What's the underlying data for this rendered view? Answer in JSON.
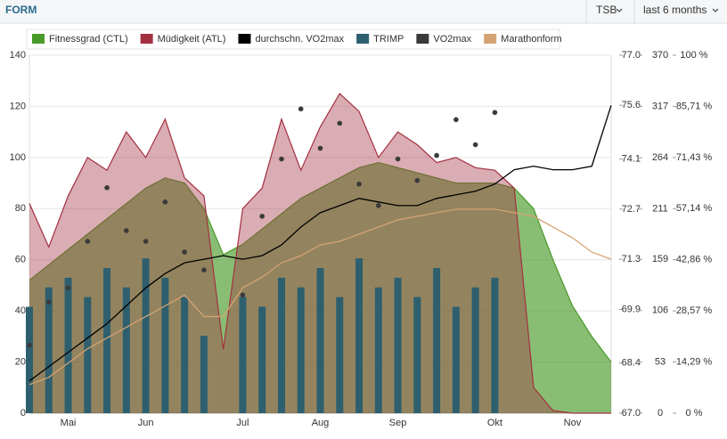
{
  "header": {
    "title": "FORM",
    "controls": [
      "TSB",
      "last 6 months"
    ]
  },
  "chart_data": {
    "type": "combo",
    "categories": [
      null,
      null,
      "Mai",
      null,
      null,
      null,
      "Jun",
      null,
      null,
      null,
      null,
      "Jul",
      null,
      null,
      null,
      "Aug",
      null,
      null,
      null,
      "Sep",
      null,
      null,
      null,
      null,
      "Okt",
      null,
      null,
      null,
      "Nov",
      null,
      null
    ],
    "ylim": [
      0,
      140
    ],
    "yticks": [
      0,
      20,
      40,
      60,
      80,
      100,
      120,
      140
    ],
    "y2lim": [
      67,
      77
    ],
    "y2ticks": [
      {
        "value": 67,
        "label": "67.0"
      },
      68.4,
      69.9,
      71.3,
      72.7,
      74.1,
      75.6,
      {
        "value": 77,
        "label": "77.0"
      }
    ],
    "y3lim": [
      0,
      370
    ],
    "y3ticks": [
      0,
      53,
      106,
      159,
      211,
      264,
      317,
      370
    ],
    "y4lim": [
      0,
      100
    ],
    "y4ticks": [
      {
        "value": 0,
        "label": "0 %"
      },
      {
        "value": 14.29,
        "label": "14,29 %"
      },
      {
        "value": 28.57,
        "label": "28,57 %"
      },
      {
        "value": 42.86,
        "label": "42,86 %"
      },
      {
        "value": 57.14,
        "label": "57,14 %"
      },
      {
        "value": 71.43,
        "label": "71,43 %"
      },
      {
        "value": 85.71,
        "label": "85,71 %"
      },
      {
        "value": 100,
        "label": "100 %"
      }
    ],
    "grid": true,
    "series": [
      {
        "name": "Fitnessgrad (CTL)",
        "color": "#4a9a2a",
        "kind": "area",
        "values": [
          52,
          58,
          64,
          70,
          76,
          82,
          88,
          92,
          90,
          80,
          62,
          66,
          72,
          78,
          84,
          88,
          92,
          96,
          98,
          96,
          94,
          92,
          90,
          90,
          90,
          88,
          80,
          60,
          42,
          30,
          20
        ]
      },
      {
        "name": "Müdigkeit (ATL)",
        "color": "#a33040",
        "kind": "area",
        "values": [
          82,
          65,
          85,
          100,
          95,
          110,
          100,
          115,
          92,
          85,
          25,
          80,
          88,
          115,
          95,
          112,
          125,
          118,
          100,
          110,
          105,
          98,
          100,
          96,
          95,
          88,
          10,
          1,
          0,
          0,
          0
        ]
      },
      {
        "name": "durchschn. VO2max",
        "color": "#000000",
        "kind": "line",
        "axis": "y2",
        "values": [
          67.9,
          68.3,
          68.7,
          69.1,
          69.5,
          70.0,
          70.5,
          70.9,
          71.2,
          71.3,
          71.4,
          71.3,
          71.4,
          71.7,
          72.2,
          72.6,
          72.8,
          73.0,
          72.9,
          72.8,
          72.8,
          73.0,
          73.1,
          73.2,
          73.4,
          73.8,
          73.9,
          73.8,
          73.8,
          73.9,
          75.6
        ]
      },
      {
        "name": "TRIMP",
        "color": "#2e5f6e",
        "kind": "bar",
        "axis": "y3",
        "values": [
          110,
          130,
          140,
          120,
          150,
          130,
          160,
          140,
          120,
          80,
          null,
          120,
          110,
          140,
          130,
          150,
          120,
          160,
          130,
          140,
          120,
          150,
          110,
          130,
          140,
          null,
          null,
          null,
          null,
          null,
          null
        ]
      },
      {
        "name": "VO2max",
        "color": "#3a3a3a",
        "kind": "scatter",
        "axis": "y2",
        "values": [
          68.9,
          70.1,
          70.5,
          71.8,
          73.3,
          72.1,
          71.8,
          72.9,
          71.5,
          71.0,
          null,
          70.3,
          72.5,
          74.1,
          75.5,
          74.4,
          75.1,
          73.4,
          72.8,
          74.1,
          73.5,
          74.2,
          75.2,
          74.5,
          75.4,
          null,
          null,
          null,
          null,
          null,
          null
        ]
      },
      {
        "name": "Marathonform",
        "color": "#d4a373",
        "kind": "line",
        "axis": "y4",
        "values": [
          8,
          10,
          14,
          18,
          21,
          24,
          27,
          30,
          33,
          27,
          27,
          35,
          38,
          42,
          44,
          47,
          48,
          50,
          52,
          54,
          55,
          56,
          57,
          57,
          57,
          56,
          55,
          52,
          49,
          45,
          43
        ]
      }
    ]
  }
}
